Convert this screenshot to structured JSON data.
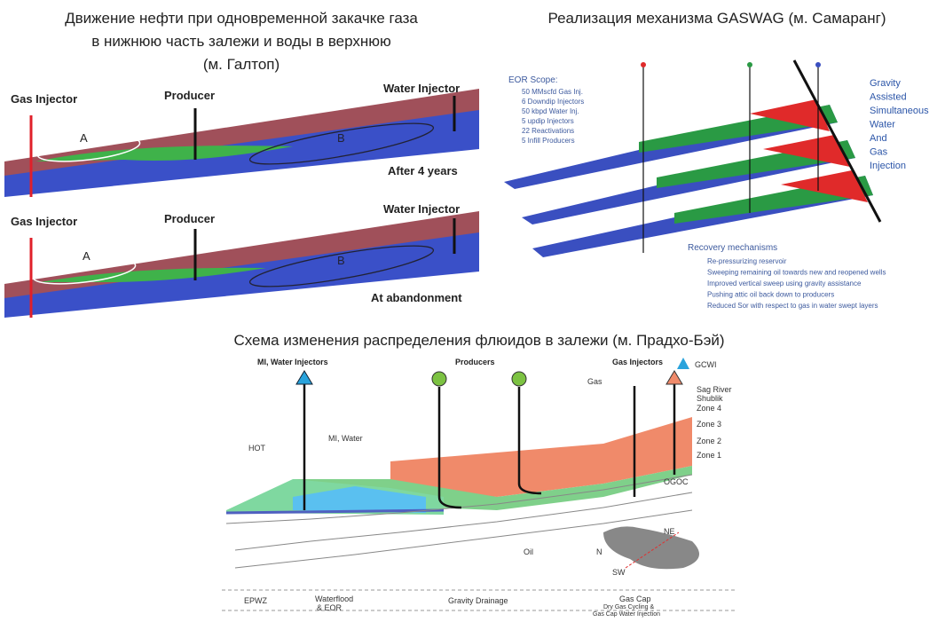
{
  "panels": [
    {
      "title_lines": [
        "Движение нефти при одновременной закачке газа",
        "в нижнюю часть залежи и воды в верхнюю",
        "(м. Галтоп)"
      ],
      "stages": [
        {
          "gas_injector": "Gas Injector",
          "producer": "Producer",
          "water_injector": "Water Injector",
          "zone_a": "A",
          "zone_b": "B",
          "caption": "After 4 years"
        },
        {
          "gas_injector": "Gas Injector",
          "producer": "Producer",
          "water_injector": "Water Injector",
          "zone_a": "A",
          "zone_b": "B",
          "caption": "At abandonment"
        }
      ]
    },
    {
      "title": "Реализация механизма GASWAG (м. Самаранг)",
      "scope_title": "EOR Scope:",
      "scope_items": [
        "50 MMscfd Gas Inj.",
        "6 Downdip Injectors",
        "50 kbpd Water Inj.",
        "5 updip Injectors",
        "22 Reactivations",
        "5 Infill Producers"
      ],
      "acronym": [
        "Gravity",
        "Assisted",
        "Simultaneous",
        "Water",
        "And",
        "Gas",
        "Injection"
      ],
      "recovery_title": "Recovery mechanisms",
      "recovery_items": [
        "Re-pressurizing reservoir",
        "Sweeping remaining oil towards new and reopened wells",
        "Improved vertical sweep using gravity assistance",
        "Pushing attic oil back down to producers",
        "Reduced Sor with respect to gas in water swept layers"
      ]
    },
    {
      "title": "Схема изменения распределения флюидов в залежи (м. Прадхо-Бэй)",
      "well_groups": [
        "MI, Water Injectors",
        "Producers",
        "Gas Injectors",
        "GCWI"
      ],
      "horizons": [
        "Sag River",
        "Shublik",
        "Zone 4",
        "Zone 3",
        "Zone 2",
        "Zone 1"
      ],
      "annotations": [
        "Gas",
        "HOT",
        "MI, Water",
        "OGOC",
        "Oil",
        "NE",
        "SW",
        "N"
      ],
      "process_zones": [
        "EPWZ",
        "Waterflood",
        "& EOR",
        "Gravity Drainage",
        "Gas Cap",
        "Dry Gas Cycling &",
        "Gas Cap Water Injection"
      ]
    }
  ]
}
